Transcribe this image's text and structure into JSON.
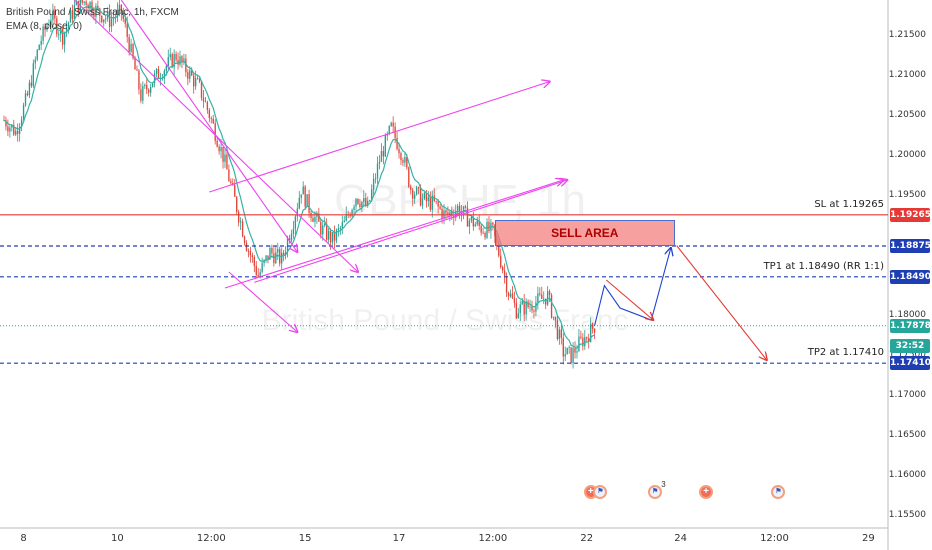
{
  "legend": {
    "symbol_line": "British Pound / Swiss Franc, 1h, FXCM",
    "indicator_line": "EMA (8, close, 0)"
  },
  "watermark": {
    "ticker": "GBPCHF, 1h",
    "name": "British Pound / Swiss Franc"
  },
  "price_axis": {
    "ticks": [
      "1.21500",
      "1.21000",
      "1.20500",
      "1.20000",
      "1.19500",
      "1.18500",
      "1.18000",
      "1.17500",
      "1.17000",
      "1.16500",
      "1.16000",
      "1.15500"
    ],
    "tick_values": [
      1.215,
      1.21,
      1.205,
      1.2,
      1.195,
      1.185,
      1.18,
      1.175,
      1.17,
      1.165,
      1.16,
      1.155
    ],
    "price_tags": [
      {
        "text": "1.19265",
        "value": 1.19265,
        "color": "#e53935"
      },
      {
        "text": "1.18875",
        "value": 1.18875,
        "color": "#1e3fb3"
      },
      {
        "text": "1.18490",
        "value": 1.1849,
        "color": "#1e3fb3"
      },
      {
        "text": "1.17878",
        "value": 1.17878,
        "color": "#26a69a"
      },
      {
        "text": "32:52",
        "value": 1.1763,
        "color": "#26a69a"
      },
      {
        "text": "1.17410",
        "value": 1.1741,
        "color": "#1e3fb3"
      }
    ]
  },
  "time_axis": {
    "labels": [
      "8",
      "10",
      "12:00",
      "15",
      "17",
      "12:00",
      "22",
      "24",
      "12:00",
      "29"
    ],
    "bar_index": [
      10,
      58,
      106,
      154,
      202,
      250,
      298,
      346,
      394,
      442
    ]
  },
  "levels": {
    "sl": {
      "label": "SL at 1.19265",
      "value": 1.19265,
      "color": "#e53935"
    },
    "entry": {
      "value": 1.18875,
      "color": "#1e3fb3"
    },
    "tp1": {
      "label": "TP1 at 1.18490 (RR 1:1)",
      "value": 1.1849,
      "color": "#1e3fb3"
    },
    "tp2": {
      "label": "TP2 at 1.17410",
      "value": 1.1741,
      "color": "#1e3fb3"
    },
    "current": {
      "value": 1.17878,
      "color": "#26a69a"
    }
  },
  "sell_area": {
    "label": "SELL AREA",
    "top": 1.192,
    "bottom": 1.1888,
    "from_bar": 251,
    "to_bar": 343
  },
  "events": [
    {
      "icon": "plus",
      "bar": 300
    },
    {
      "icon": "flag",
      "bar": 305
    },
    {
      "icon": "flag",
      "bar": 333,
      "badge": "3"
    },
    {
      "icon": "plus",
      "bar": 359
    },
    {
      "icon": "flag",
      "bar": 396
    }
  ],
  "chart_data": {
    "type": "candlestick",
    "symbol": "GBPCHF",
    "timeframe": "1h",
    "ylim": [
      1.1535,
      1.2195
    ],
    "current_price": 1.17878,
    "ema_period": 8,
    "price_path": [
      [
        0,
        1.2045
      ],
      [
        6,
        1.203
      ],
      [
        12,
        1.2075
      ],
      [
        18,
        1.214
      ],
      [
        24,
        1.2175
      ],
      [
        30,
        1.215
      ],
      [
        36,
        1.2185
      ],
      [
        42,
        1.2195
      ],
      [
        48,
        1.218
      ],
      [
        54,
        1.217
      ],
      [
        60,
        1.218
      ],
      [
        64,
        1.214
      ],
      [
        70,
        1.2075
      ],
      [
        76,
        1.2095
      ],
      [
        82,
        1.211
      ],
      [
        88,
        1.2125
      ],
      [
        94,
        1.2105
      ],
      [
        100,
        1.2085
      ],
      [
        106,
        1.2045
      ],
      [
        112,
        1.2
      ],
      [
        118,
        1.1945
      ],
      [
        124,
        1.189
      ],
      [
        130,
        1.185
      ],
      [
        136,
        1.188
      ],
      [
        142,
        1.187
      ],
      [
        148,
        1.192
      ],
      [
        152,
        1.196
      ],
      [
        156,
        1.1935
      ],
      [
        162,
        1.191
      ],
      [
        168,
        1.1895
      ],
      [
        174,
        1.1915
      ],
      [
        180,
        1.195
      ],
      [
        186,
        1.1935
      ],
      [
        192,
        1.1995
      ],
      [
        198,
        1.2035
      ],
      [
        204,
        1.2
      ],
      [
        208,
        1.196
      ],
      [
        214,
        1.1945
      ],
      [
        220,
        1.194
      ],
      [
        226,
        1.1925
      ],
      [
        232,
        1.1935
      ],
      [
        238,
        1.192
      ],
      [
        244,
        1.191
      ],
      [
        250,
        1.1905
      ],
      [
        254,
        1.187
      ],
      [
        258,
        1.183
      ],
      [
        262,
        1.1808
      ],
      [
        268,
        1.1812
      ],
      [
        274,
        1.182
      ],
      [
        278,
        1.1825
      ],
      [
        282,
        1.179
      ],
      [
        286,
        1.1755
      ],
      [
        290,
        1.175
      ],
      [
        294,
        1.1765
      ],
      [
        298,
        1.1775
      ],
      [
        302,
        1.1788
      ]
    ],
    "projection_blue": [
      [
        302,
        1.1788
      ],
      [
        307,
        1.1838
      ],
      [
        315,
        1.181
      ],
      [
        331,
        1.1795
      ],
      [
        341,
        1.1885
      ]
    ],
    "projection_red_up": [
      [
        308,
        1.1845
      ],
      [
        332,
        1.1795
      ]
    ],
    "projection_red_down": [
      [
        344,
        1.1888
      ],
      [
        390,
        1.1745
      ]
    ],
    "channels": [
      {
        "color": "#ee44ee",
        "from": [
          36,
          1.2195
        ],
        "to": [
          181,
          1.1855
        ]
      },
      {
        "color": "#ee44ee",
        "from": [
          60,
          1.2195
        ],
        "to": [
          150,
          1.188
        ]
      },
      {
        "color": "#ee44ee",
        "from": [
          115,
          1.1855
        ],
        "to": [
          150,
          1.178
        ]
      },
      {
        "color": "#ee44ee",
        "from": [
          105,
          1.1955
        ],
        "to": [
          279,
          1.2093
        ]
      },
      {
        "color": "#ee44ee",
        "from": [
          113,
          1.1835
        ],
        "to": [
          286,
          1.197
        ]
      },
      {
        "color": "#ee44ee",
        "from": [
          128,
          1.1842
        ],
        "to": [
          288,
          1.197
        ]
      }
    ]
  }
}
